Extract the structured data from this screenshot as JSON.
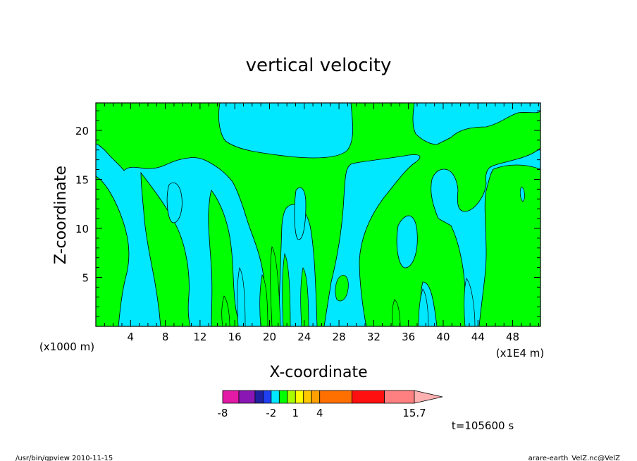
{
  "chart_data": {
    "type": "heatmap",
    "title": "vertical velocity",
    "xlabel": "X-coordinate",
    "ylabel": "Z-coordinate",
    "x_scale_note": "(x1000 m)",
    "y_scale_note": "(x1E4 m)",
    "x_ticks": [
      "4",
      "8",
      "12",
      "16",
      "20",
      "24",
      "28",
      "32",
      "36",
      "40",
      "44",
      "48"
    ],
    "x_tick_values": [
      4,
      8,
      12,
      16,
      20,
      24,
      28,
      32,
      36,
      40,
      44,
      48
    ],
    "y_ticks": [
      "5",
      "10",
      "15",
      "20"
    ],
    "y_tick_values": [
      5,
      10,
      15,
      20
    ],
    "xlim": [
      0,
      51.2
    ],
    "ylim": [
      0,
      22.8
    ],
    "colorbar": {
      "labels": [
        "-8",
        "-2",
        "1",
        "4",
        "15.7"
      ],
      "label_values": [
        -8,
        -2,
        1,
        4,
        15.7
      ],
      "levels": [
        -8,
        -6,
        -4,
        -3,
        -2,
        -1,
        0,
        1,
        2,
        3,
        4,
        8,
        12,
        15.7
      ],
      "colors": [
        "#e21aa6",
        "#8a17b4",
        "#2020a0",
        "#1f3ff0",
        "#00e8ff",
        "#00ff00",
        "#a8ff00",
        "#ffff00",
        "#ffc800",
        "#ffa000",
        "#ff7000",
        "#ff1010",
        "#ff8080",
        "#ffb0b0"
      ]
    },
    "field_colors": {
      "negative": "#00e8ff",
      "positive": "#00ff00"
    },
    "time_label": "t=105600 s"
  },
  "footer": {
    "left": "/usr/bin/gpview   2010-11-15",
    "right": "arare-earth_VelZ.nc@VelZ"
  }
}
